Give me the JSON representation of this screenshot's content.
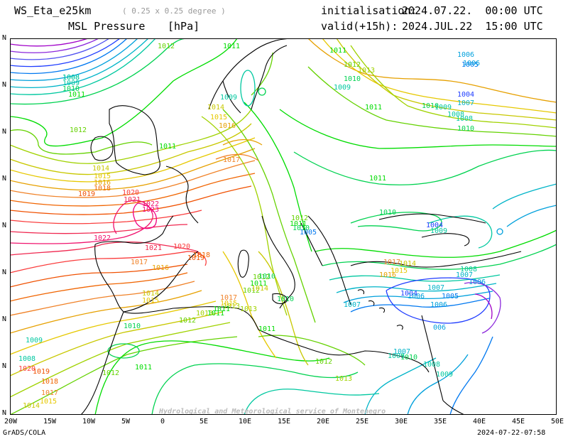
{
  "header": {
    "model": "WS_Eta_e25km",
    "resolution": "( 0.25 x 0.25 degree )",
    "variable": "MSL Pressure",
    "unit": "[hPa]",
    "init_label": "initialisation:",
    "init_value": "2024.07.22.  00:00 UTC",
    "valid_label": "valid(+15h):",
    "valid_value": "2024.JUL.22  15:00 UTC"
  },
  "footer": {
    "software": "GrADS/COLA",
    "timestamp": "2024-07-22-07:58",
    "watermark": "Hydrological and Meteorological service of Montenegro"
  },
  "axes": {
    "lon_ticks": [
      "20W",
      "15W",
      "10W",
      "5W",
      "0",
      "5E",
      "10E",
      "15E",
      "20E",
      "25E",
      "30E",
      "35E",
      "40E",
      "45E",
      "50E"
    ],
    "lat_ticks": [
      "N",
      "N",
      "N",
      "N",
      "N",
      "N",
      "N",
      "N",
      "N",
      "N"
    ]
  },
  "map_data": {
    "contour_interval_hpa": 1,
    "colors": {
      "deep_low": "#a000c8",
      "low": "#1e3cff",
      "mid_low": "#00c8c8",
      "neutral": "#00dc00",
      "mid_high": "#e6dc32",
      "high": "#f08228",
      "very_high": "#fa3c3c",
      "peak": "#f00082",
      "coast": "#000000"
    },
    "labels": [
      {
        "text": "1008",
        "c": "#00c8a0"
      },
      {
        "text": "1009",
        "c": "#00c8a0"
      },
      {
        "text": "1010",
        "c": "#00d250"
      },
      {
        "text": "1011",
        "c": "#00dc00"
      },
      {
        "text": "1012",
        "c": "#64d200"
      },
      {
        "text": "1009",
        "c": "#00c8a0"
      },
      {
        "text": "1011",
        "c": "#00dc00"
      },
      {
        "text": "1012",
        "c": "#64d200"
      },
      {
        "text": "1011",
        "c": "#00dc00"
      },
      {
        "text": "1014",
        "c": "#c8c800"
      },
      {
        "text": "1015",
        "c": "#e6c800"
      },
      {
        "text": "1016",
        "c": "#e6a000"
      },
      {
        "text": "1019",
        "c": "#f05000"
      },
      {
        "text": "1018",
        "c": "#f06400"
      },
      {
        "text": "1014",
        "c": "#c8c800"
      },
      {
        "text": "1015",
        "c": "#e6c800"
      },
      {
        "text": "1016",
        "c": "#e6a000"
      },
      {
        "text": "1017",
        "c": "#f08228"
      },
      {
        "text": "1020",
        "c": "#fa3c3c"
      },
      {
        "text": "1021",
        "c": "#f02850"
      },
      {
        "text": "1022",
        "c": "#f0146e"
      },
      {
        "text": "1023",
        "c": "#f00082"
      },
      {
        "text": "1022",
        "c": "#f0146e"
      },
      {
        "text": "1021",
        "c": "#f02850"
      },
      {
        "text": "1020",
        "c": "#fa3c3c"
      },
      {
        "text": "1019",
        "c": "#f05000"
      },
      {
        "text": "1018",
        "c": "#f06400"
      },
      {
        "text": "1017",
        "c": "#f08228"
      },
      {
        "text": "1016",
        "c": "#e6a000"
      },
      {
        "text": "1014",
        "c": "#c8c800"
      },
      {
        "text": "1015",
        "c": "#e6c800"
      },
      {
        "text": "1013",
        "c": "#a0d200"
      },
      {
        "text": "1011",
        "c": "#00dc00"
      },
      {
        "text": "1012",
        "c": "#64d200"
      },
      {
        "text": "1010",
        "c": "#00d250"
      },
      {
        "text": "1009",
        "c": "#00c8a0"
      },
      {
        "text": "1008",
        "c": "#00c8a0"
      },
      {
        "text": "1020",
        "c": "#fa3c3c"
      },
      {
        "text": "1019",
        "c": "#f05000"
      },
      {
        "text": "1018",
        "c": "#f06400"
      },
      {
        "text": "1017",
        "c": "#f08228"
      },
      {
        "text": "1015",
        "c": "#e6c800"
      },
      {
        "text": "1014",
        "c": "#c8c800"
      },
      {
        "text": "1012",
        "c": "#64d200"
      },
      {
        "text": "1011",
        "c": "#00dc00"
      },
      {
        "text": "1013",
        "c": "#a0d200"
      },
      {
        "text": "1015",
        "c": "#e6c800"
      },
      {
        "text": "1017",
        "c": "#f08228"
      },
      {
        "text": "1013",
        "c": "#a0d200"
      },
      {
        "text": "1012",
        "c": "#64d200"
      },
      {
        "text": "1011",
        "c": "#00dc00"
      },
      {
        "text": "1012",
        "c": "#64d200"
      },
      {
        "text": "1011",
        "c": "#00dc00"
      },
      {
        "text": "1010",
        "c": "#00d250"
      },
      {
        "text": "1014",
        "c": "#c8c800"
      },
      {
        "text": "1010",
        "c": "#00d250"
      },
      {
        "text": "1011",
        "c": "#00dc00"
      },
      {
        "text": "1013",
        "c": "#a0d200"
      },
      {
        "text": "1012",
        "c": "#64d200"
      },
      {
        "text": "1010",
        "c": "#00d250"
      },
      {
        "text": "1009",
        "c": "#00c8a0"
      },
      {
        "text": "1011",
        "c": "#00dc00"
      },
      {
        "text": "1010",
        "c": "#00d250"
      },
      {
        "text": "1009",
        "c": "#00c8a0"
      },
      {
        "text": "1008",
        "c": "#00c8a0"
      },
      {
        "text": "1006",
        "c": "#00a0dc"
      },
      {
        "text": "1005",
        "c": "#0078f0"
      },
      {
        "text": "1004",
        "c": "#1e3cff"
      },
      {
        "text": "1007",
        "c": "#00b4c8"
      },
      {
        "text": "1006",
        "c": "#00a0dc"
      },
      {
        "text": "1008",
        "c": "#00c8a0"
      },
      {
        "text": "1010",
        "c": "#00d250"
      },
      {
        "text": "1011",
        "c": "#00dc00"
      },
      {
        "text": "1012",
        "c": "#64d200"
      },
      {
        "text": "1013",
        "c": "#a0d200"
      },
      {
        "text": "1014",
        "c": "#c8c800"
      },
      {
        "text": "1015",
        "c": "#e6c800"
      },
      {
        "text": "1016",
        "c": "#e6a000"
      },
      {
        "text": "1017",
        "c": "#f08228"
      },
      {
        "text": "1010",
        "c": "#00d250"
      },
      {
        "text": "1011",
        "c": "#00dc00"
      },
      {
        "text": "1012",
        "c": "#64d200"
      },
      {
        "text": "1011",
        "c": "#00dc00"
      },
      {
        "text": "1010",
        "c": "#00d250"
      },
      {
        "text": "1005",
        "c": "#0078f0"
      },
      {
        "text": "1004",
        "c": "#1e3cff"
      },
      {
        "text": "1009",
        "c": "#00c8a0"
      },
      {
        "text": "1008",
        "c": "#00c8a0"
      },
      {
        "text": "1007",
        "c": "#00b4c8"
      },
      {
        "text": "1006",
        "c": "#00a0dc"
      },
      {
        "text": "1005",
        "c": "#0078f0"
      },
      {
        "text": "1007",
        "c": "#00b4c8"
      },
      {
        "text": "1006",
        "c": "#00a0dc"
      },
      {
        "text": "006",
        "c": "#00a0dc"
      },
      {
        "text": "1004",
        "c": "#1e3cff"
      },
      {
        "text": "1006",
        "c": "#00a0dc"
      },
      {
        "text": "1007",
        "c": "#00b4c8"
      },
      {
        "text": "1009",
        "c": "#00c8a0"
      },
      {
        "text": "1010",
        "c": "#00d250"
      },
      {
        "text": "1008",
        "c": "#00c8a0"
      },
      {
        "text": "1009",
        "c": "#00c8a0"
      },
      {
        "text": "1007",
        "c": "#00b4c8"
      },
      {
        "text": "1008",
        "c": "#00c8a0"
      }
    ]
  }
}
